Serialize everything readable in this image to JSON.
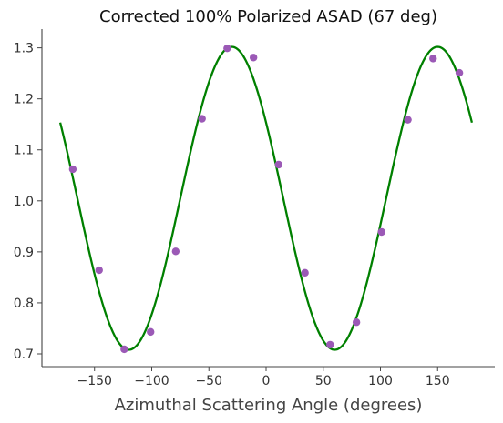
{
  "chart_data": {
    "type": "scatter",
    "title": "Corrected 100% Polarized ASAD (67 deg)",
    "xlabel": "Azimuthal Scattering Angle (degrees)",
    "ylabel": "",
    "xlim": [
      -196,
      200
    ],
    "ylim": [
      0.675,
      1.335
    ],
    "xticks": [
      -150,
      -100,
      -50,
      0,
      50,
      100,
      150
    ],
    "yticks": [
      0.7,
      0.8,
      0.9,
      1.0,
      1.1,
      1.2,
      1.3
    ],
    "xtick_labels": [
      "−150",
      "−100",
      "−50",
      "0",
      "50",
      "100",
      "150"
    ],
    "ytick_labels": [
      "0.7",
      "0.8",
      "0.9",
      "1.0",
      "1.1",
      "1.2",
      "1.3"
    ],
    "grid": false,
    "series": [
      {
        "kind": "points",
        "color": "#9b59b6",
        "x": [
          -169,
          -146,
          -124,
          -101,
          -79,
          -56,
          -34,
          -11,
          11,
          34,
          56,
          79,
          101,
          124,
          146,
          169
        ],
        "y": [
          1.062,
          0.864,
          0.709,
          0.743,
          0.901,
          1.161,
          1.299,
          1.281,
          1.071,
          0.859,
          0.718,
          0.762,
          0.939,
          1.159,
          1.279,
          1.251
        ]
      },
      {
        "kind": "fit-curve",
        "color": "#008000",
        "x_range": [
          -180,
          180
        ],
        "offset": 1.005,
        "amplitude": 0.297,
        "phase_deg": -30
      }
    ]
  }
}
